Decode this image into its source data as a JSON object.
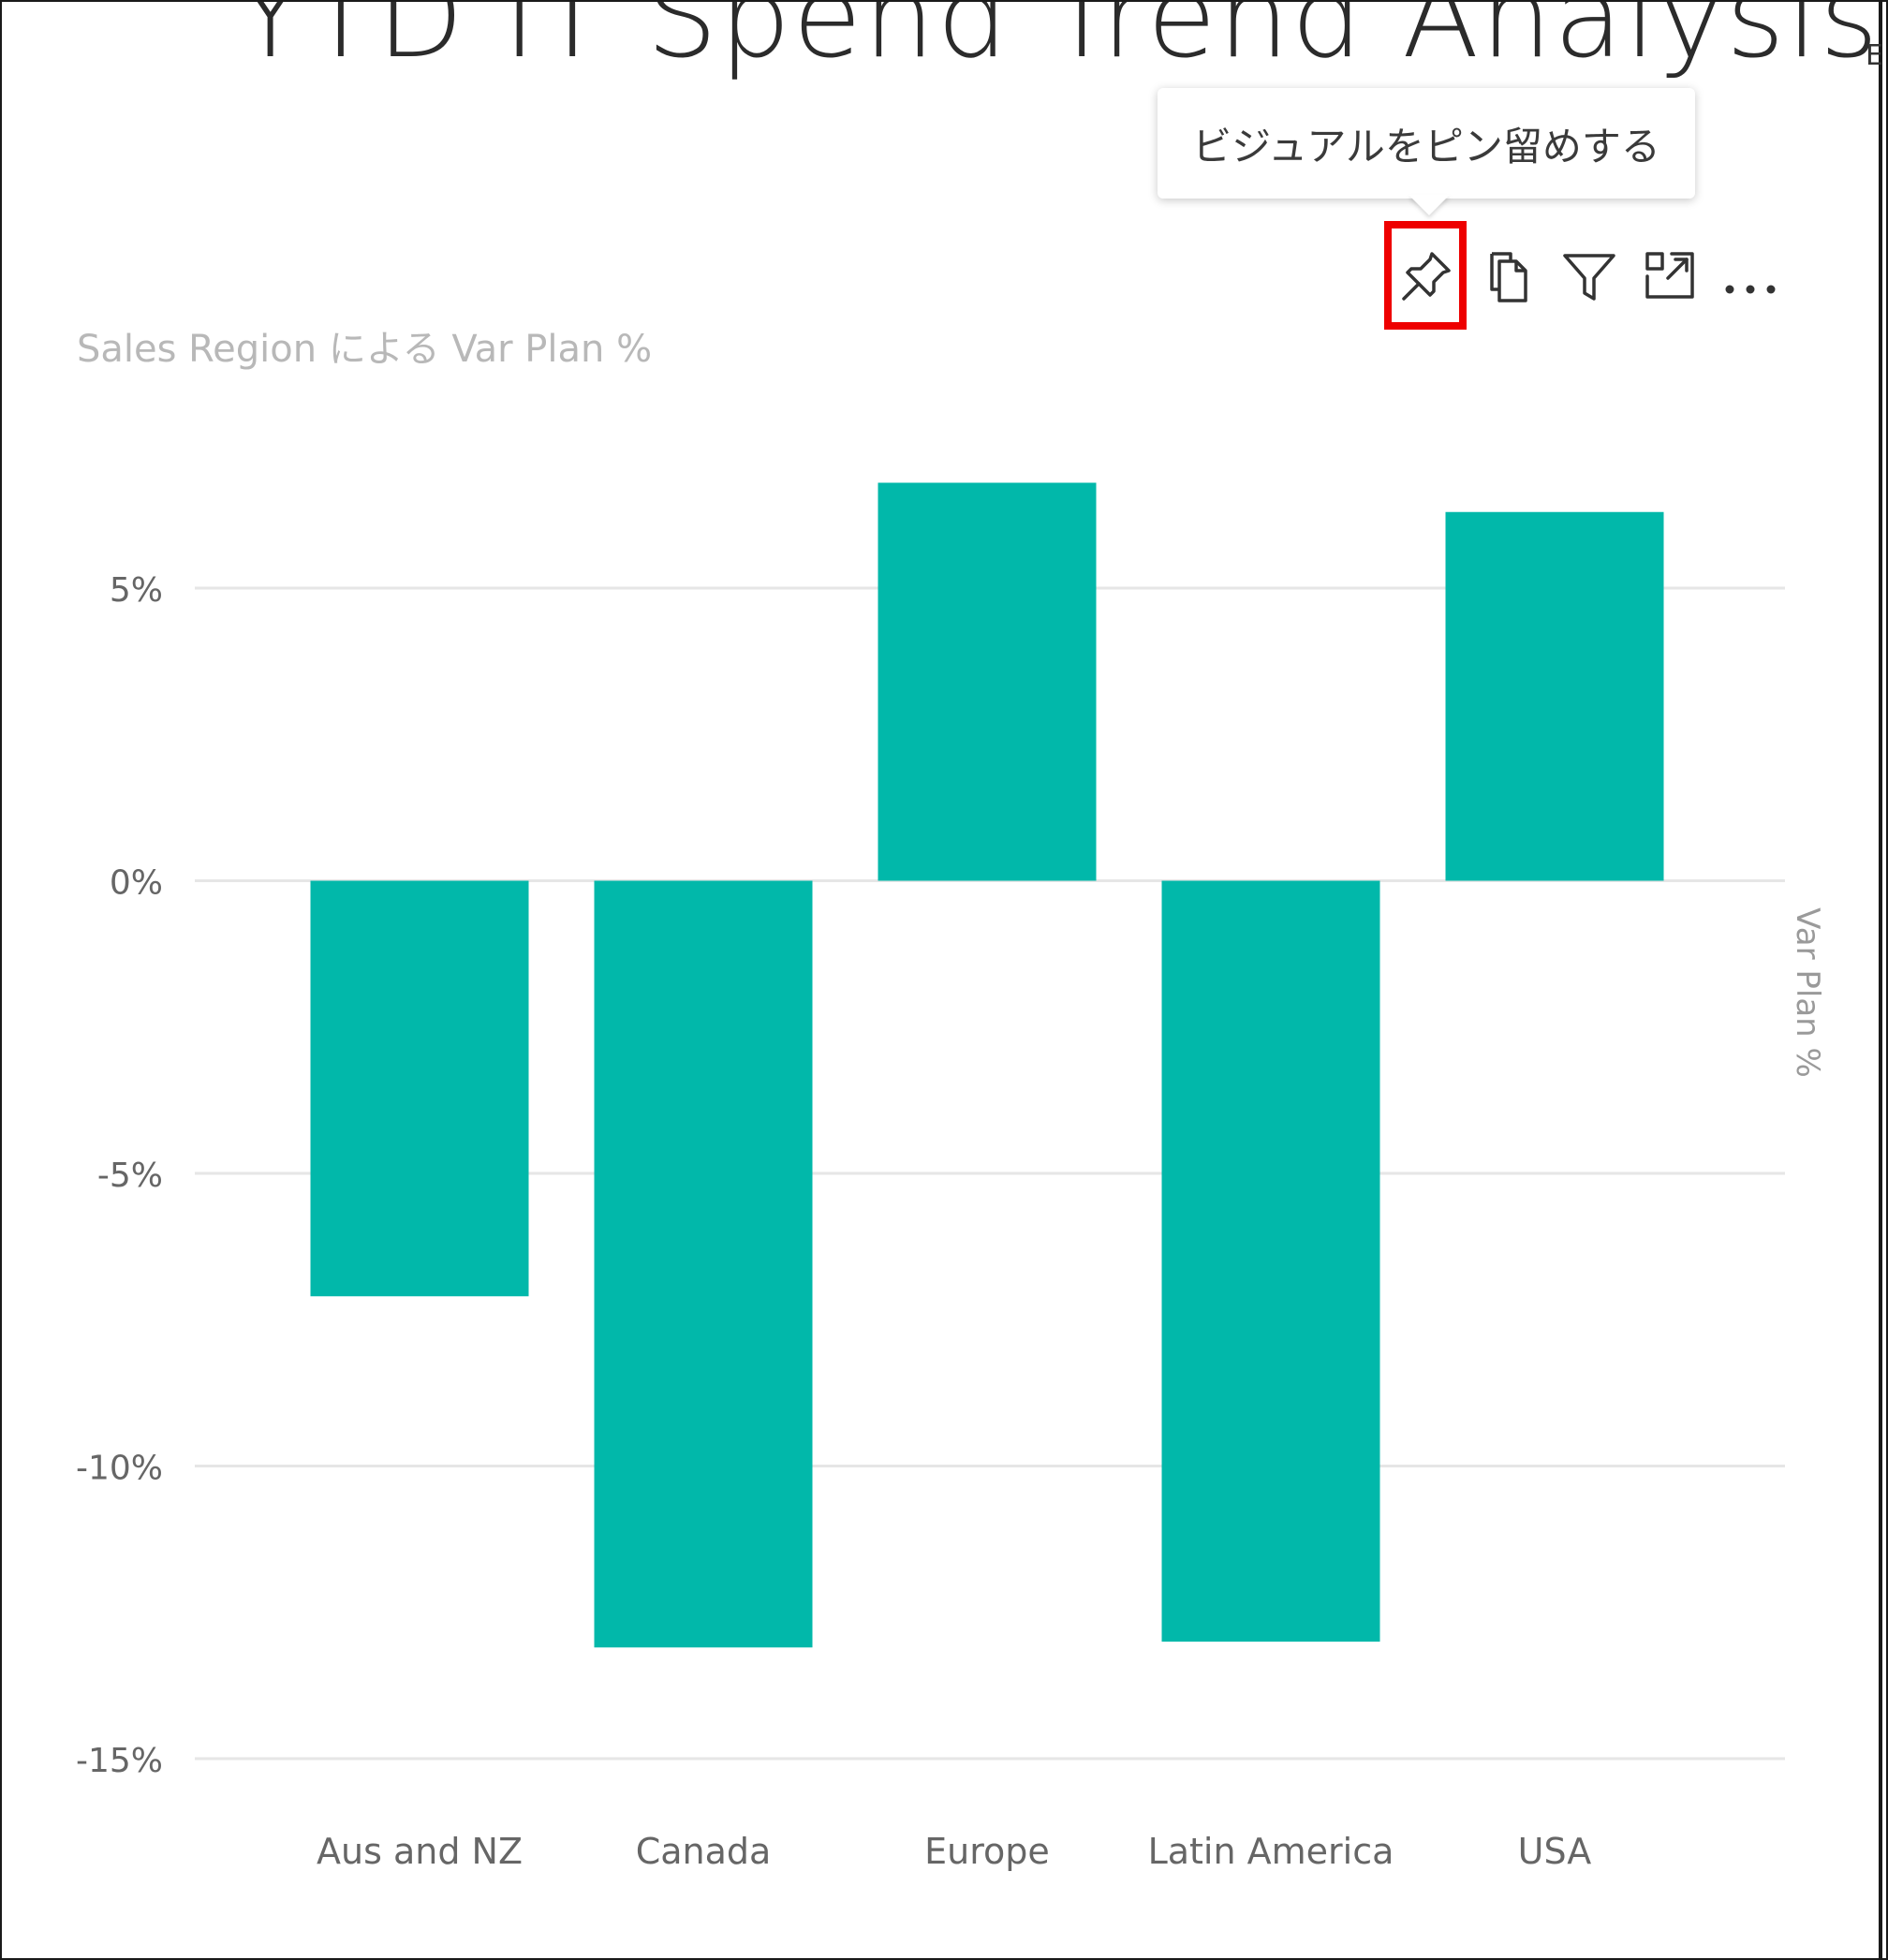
{
  "report": {
    "title": "YTD IT Spend Trend Analysis"
  },
  "tooltip": {
    "text": "ビジュアルをピン留めする"
  },
  "toolbar": {
    "icons": [
      "pin-icon",
      "copy-icon",
      "filter-icon",
      "focus-mode-icon",
      "more-options-icon"
    ]
  },
  "visual": {
    "title": "Sales Region による Var Plan %"
  },
  "edge": {
    "letter": "E",
    "axis_label": "Var Plan %"
  },
  "colors": {
    "bar": "#01B8AA",
    "grid": "#e6e6e6",
    "highlight": "#ee0000"
  },
  "chart_data": {
    "type": "bar",
    "title": "Sales Region による Var Plan %",
    "categories": [
      "Aus and NZ",
      "Canada",
      "Europe",
      "Latin America",
      "USA"
    ],
    "values": [
      -7.1,
      -13.1,
      6.8,
      -13.0,
      6.3
    ],
    "ylim": [
      -15,
      5
    ],
    "yticks": [
      5,
      0,
      -5,
      -10,
      -15
    ],
    "ytick_labels": [
      "5%",
      "0%",
      "-5%",
      "-10%",
      "-15%"
    ],
    "grid": true
  }
}
